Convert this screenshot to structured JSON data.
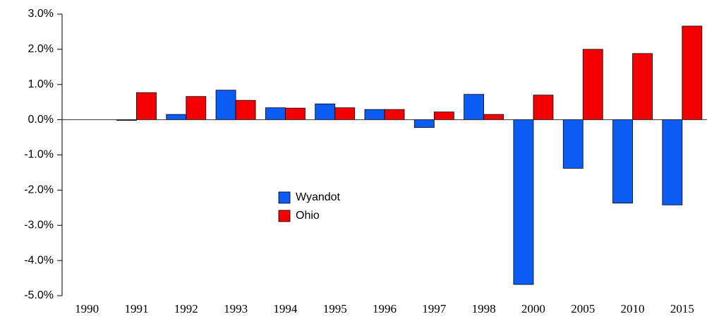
{
  "chart_data": {
    "type": "bar",
    "categories": [
      "1990",
      "1991",
      "1992",
      "1993",
      "1994",
      "1995",
      "1996",
      "1997",
      "1998",
      "2000",
      "2005",
      "2010",
      "2015"
    ],
    "series": [
      {
        "name": "Wyandot",
        "color": "#0a5cf5",
        "values": [
          0,
          -0.02,
          0.15,
          0.84,
          0.34,
          0.45,
          0.29,
          -0.22,
          0.72,
          -4.68,
          -1.38,
          -2.37,
          -2.42
        ]
      },
      {
        "name": "Ohio",
        "color": "#f50000",
        "values": [
          0,
          0.77,
          0.66,
          0.55,
          0.33,
          0.34,
          0.29,
          0.22,
          0.15,
          0.7,
          2.0,
          1.88,
          2.66
        ]
      }
    ],
    "ylim": [
      -5,
      3
    ],
    "yticks": [
      {
        "value": -5,
        "label": "-5.0%"
      },
      {
        "value": -4,
        "label": "-4.0%"
      },
      {
        "value": -3,
        "label": "-3.0%"
      },
      {
        "value": -2,
        "label": "-2.0%"
      },
      {
        "value": -1,
        "label": "-1.0%"
      },
      {
        "value": 0,
        "label": "0.0%"
      },
      {
        "value": 1,
        "label": "1.0%"
      },
      {
        "value": 2,
        "label": "2.0%"
      },
      {
        "value": 3,
        "label": "3.0%"
      }
    ],
    "grid": false,
    "legend": "center"
  }
}
